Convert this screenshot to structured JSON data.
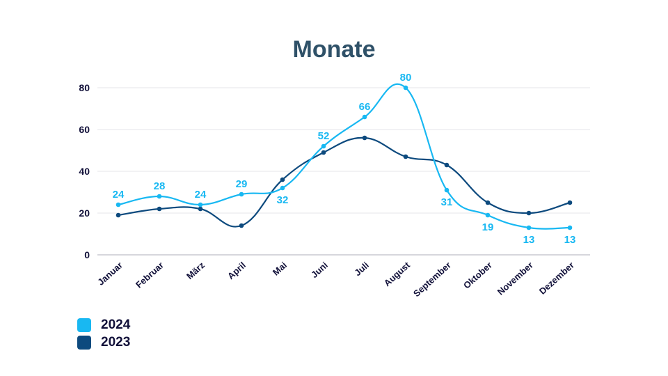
{
  "chart_data": {
    "type": "line",
    "title": "Monate",
    "xlabel": "",
    "ylabel": "",
    "ylim": [
      0,
      80
    ],
    "yticks": [
      0,
      20,
      40,
      60,
      80
    ],
    "grid": true,
    "legend_position": "bottom-left",
    "categories": [
      "Januar",
      "Februar",
      "März",
      "April",
      "Mai",
      "Juni",
      "Juli",
      "August",
      "September",
      "Oktober",
      "November",
      "Dezember"
    ],
    "series": [
      {
        "name": "2024",
        "color": "#18b8f2",
        "values": [
          24,
          28,
          24,
          29,
          32,
          52,
          66,
          80,
          31,
          19,
          13,
          13
        ],
        "data_labels": true
      },
      {
        "name": "2023",
        "color": "#0d4a7e",
        "values": [
          19,
          22,
          22,
          14,
          36,
          49,
          56,
          47,
          43,
          25,
          20,
          25
        ],
        "data_labels": false
      }
    ]
  },
  "colors": {
    "title": "#2f5168",
    "axis_text": "#12113a",
    "grid": "#e6e6ea",
    "series_2024": "#18b8f2",
    "series_2023": "#0d4a7e"
  }
}
